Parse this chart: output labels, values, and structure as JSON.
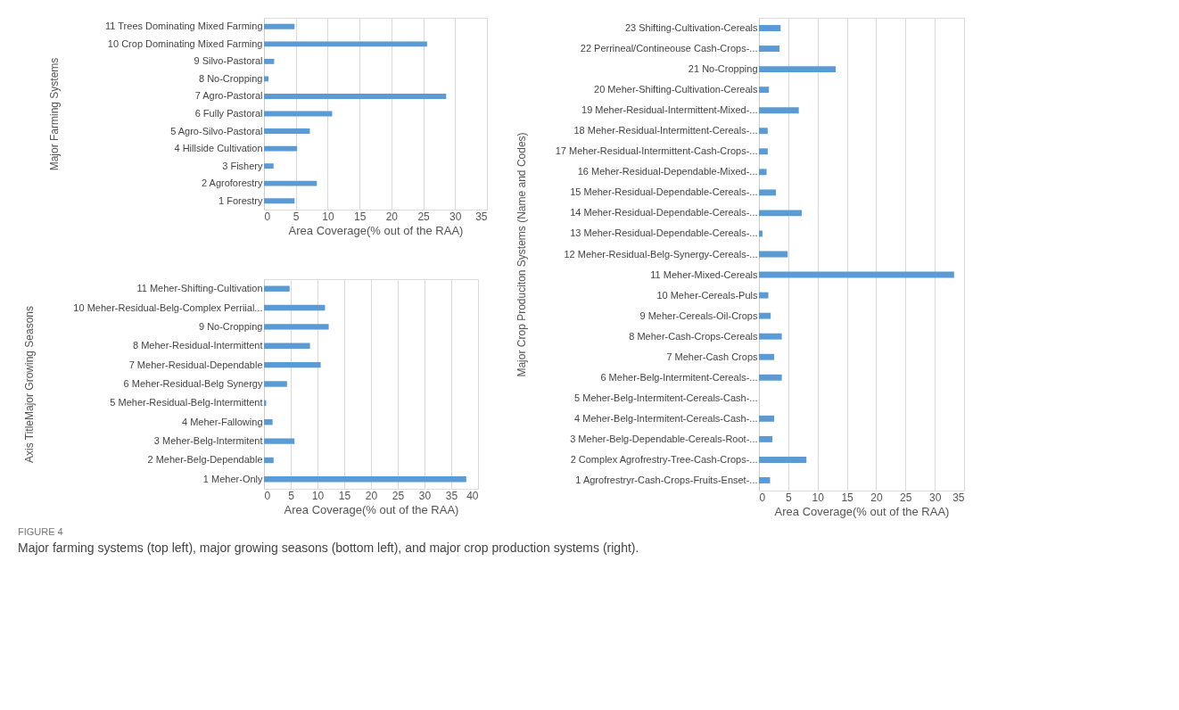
{
  "chart_data": [
    {
      "type": "bar",
      "orientation": "horizontal",
      "ylabel": "Major Farming Systems",
      "xlabel": "Area Coverage(%  out of the RAA)",
      "categories": [
        "11 Trees  Dominating Mixed Farming",
        "10 Crop Dominating Mixed Farming",
        "9 Silvo-Pastoral",
        "8 No-Cropping",
        "7 Agro-Pastoral",
        "6 Fully Pastoral",
        "5 Agro-Silvo-Pastoral",
        "4 Hillside Cultivation",
        "3 Fishery",
        "2 Agroforestry",
        "1 Forestry"
      ],
      "values": [
        4.8,
        25.6,
        1.6,
        0.7,
        28.6,
        10.7,
        7.2,
        5.2,
        1.5,
        8.3,
        4.8
      ],
      "color": "#5b9bd5",
      "xlim": [
        0,
        35
      ],
      "xticks": [
        0,
        5,
        10,
        15,
        20,
        25,
        30,
        35
      ],
      "grid": "x"
    },
    {
      "type": "bar",
      "orientation": "horizontal",
      "ylabel": "Axis TitleMajor Growing Seasons",
      "xlabel": "Area Coverage(%  out of the RAA)",
      "categories": [
        "11 Meher-Shifting-Cultivation",
        "10 Meher-Residual-Belg-Complex Perriial...",
        "9 No-Cropping",
        "8 Meher-Residual-Intermittent",
        "7 Meher-Residual-Dependable",
        "6 Meher-Residual-Belg Synergy",
        "5 Meher-Residual-Belg-Intermittent",
        "4 Meher-Fallowing",
        "3 Meher-Belg-Intermitent",
        "2 Meher-Belg-Dependable",
        "1 Meher-Only"
      ],
      "values": [
        4.8,
        11.4,
        12.1,
        8.6,
        10.6,
        4.3,
        0.4,
        1.6,
        5.7,
        1.8,
        37.8
      ],
      "color": "#5b9bd5",
      "xlim": [
        0,
        40
      ],
      "xticks": [
        0,
        5,
        10,
        15,
        20,
        25,
        30,
        35,
        40
      ],
      "grid": "x"
    },
    {
      "type": "bar",
      "orientation": "horizontal",
      "ylabel": "Major Crop Produciton Systems (Name and Codes)",
      "xlabel": "Area Coverage(%  out of the RAA)",
      "categories": [
        "23 Shifting-Cultivation-Cereals",
        "22 Perrineal/Contineouse Cash-Crops-...",
        "21 No-Cropping",
        "20 Meher-Shifting-Cultivation-Cereals",
        "19 Meher-Residual-Intermittent-Mixed-...",
        "18 Meher-Residual-Intermittent-Cereals-...",
        "17 Meher-Residual-Intermittent-Cash-Crops-...",
        "16 Meher-Residual-Dependable-Mixed-...",
        "15 Meher-Residual-Dependable-Cereals-...",
        "14 Meher-Residual-Dependable-Cereals-...",
        "13 Meher-Residual-Dependable-Cereals-...",
        "12 Meher-Residual-Belg-Synergy-Cereals-...",
        "11 Meher-Mixed-Cereals",
        "10 Meher-Cereals-Puls",
        "9 Meher-Cereals-Oil-Crops",
        "8 Meher-Cash-Crops-Cereals",
        "7 Meher-Cash Crops",
        "6 Meher-Belg-Intermitent-Cereals-...",
        "5 Meher-Belg-Intermitent-Cereals-Cash-...",
        "4 Meher-Belg-Intermitent-Cereals-Cash-...",
        "3 Meher-Belg-Dependable-Cereals-Root-...",
        "2 Complex Agrofrestry-Tree-Cash-Crops-...",
        "1 Agrofrestryr-Cash-Crops-Fruits-Enset-..."
      ],
      "values": [
        3.7,
        3.5,
        13.1,
        1.7,
        6.8,
        1.5,
        1.5,
        1.3,
        2.9,
        7.3,
        0.6,
        4.9,
        33.3,
        1.6,
        2.0,
        3.9,
        2.6,
        3.9,
        0,
        2.6,
        2.3,
        8.1,
        1.9
      ],
      "color": "#5b9bd5",
      "xlim": [
        0,
        35
      ],
      "xticks": [
        0,
        5,
        10,
        15,
        20,
        25,
        30,
        35
      ],
      "grid": "x",
      "annotations": [
        "FIGURE 4",
        "Major farming systems (top left), major growing seasons (bottom left), and major crop production systems (right)."
      ]
    }
  ]
}
